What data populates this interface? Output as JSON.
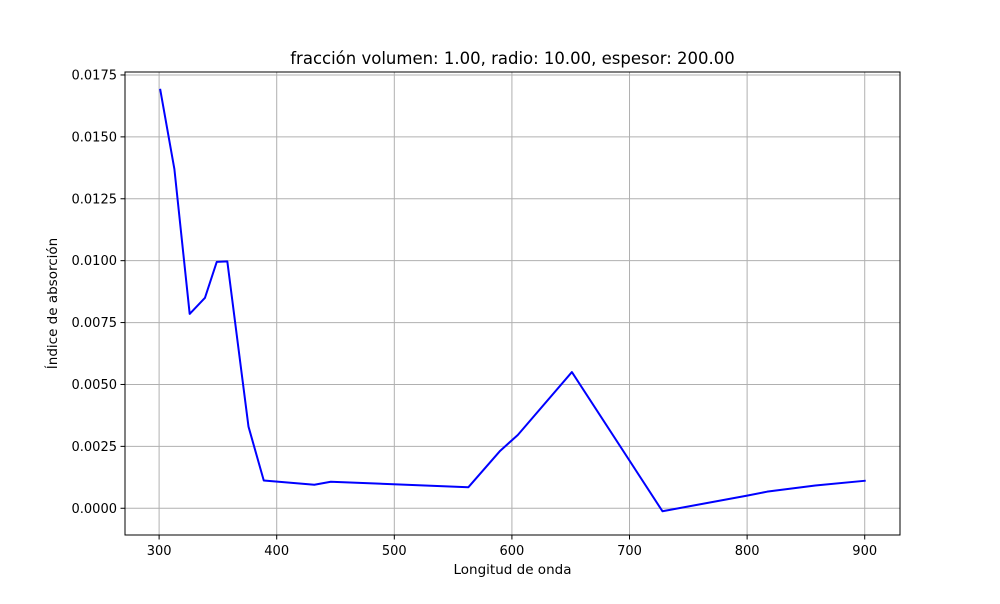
{
  "chart_data": {
    "type": "line",
    "title": "fracción volumen: 1.00, radio: 10.00, espesor: 200.00",
    "xlabel": "Longitud de onda",
    "ylabel": "Índice de absorción",
    "xlim": [
      271,
      930
    ],
    "ylim": [
      -0.00108,
      0.01762
    ],
    "x_ticks": [
      300,
      400,
      500,
      600,
      700,
      800,
      900
    ],
    "x_tick_labels": [
      "300",
      "400",
      "500",
      "600",
      "700",
      "800",
      "900"
    ],
    "y_ticks": [
      0.0,
      0.0025,
      0.005,
      0.0075,
      0.01,
      0.0125,
      0.015,
      0.0175
    ],
    "y_tick_labels": [
      "0.0000",
      "0.0025",
      "0.0050",
      "0.0075",
      "0.0100",
      "0.0125",
      "0.0150",
      "0.0175"
    ],
    "grid": true,
    "legend": false,
    "series": [
      {
        "color": "#0000ff",
        "x": [
          301,
          313,
          326,
          339,
          349,
          358,
          376,
          389,
          432,
          446,
          563,
          590,
          605,
          651,
          728,
          800,
          817,
          858,
          900
        ],
        "y": [
          0.0169,
          0.0137,
          0.00785,
          0.0085,
          0.00995,
          0.00997,
          0.0033,
          0.00112,
          0.00095,
          0.00107,
          0.00085,
          0.00232,
          0.00296,
          0.0055,
          -0.00012,
          0.00051,
          0.00067,
          0.00092,
          0.00111
        ]
      }
    ]
  }
}
